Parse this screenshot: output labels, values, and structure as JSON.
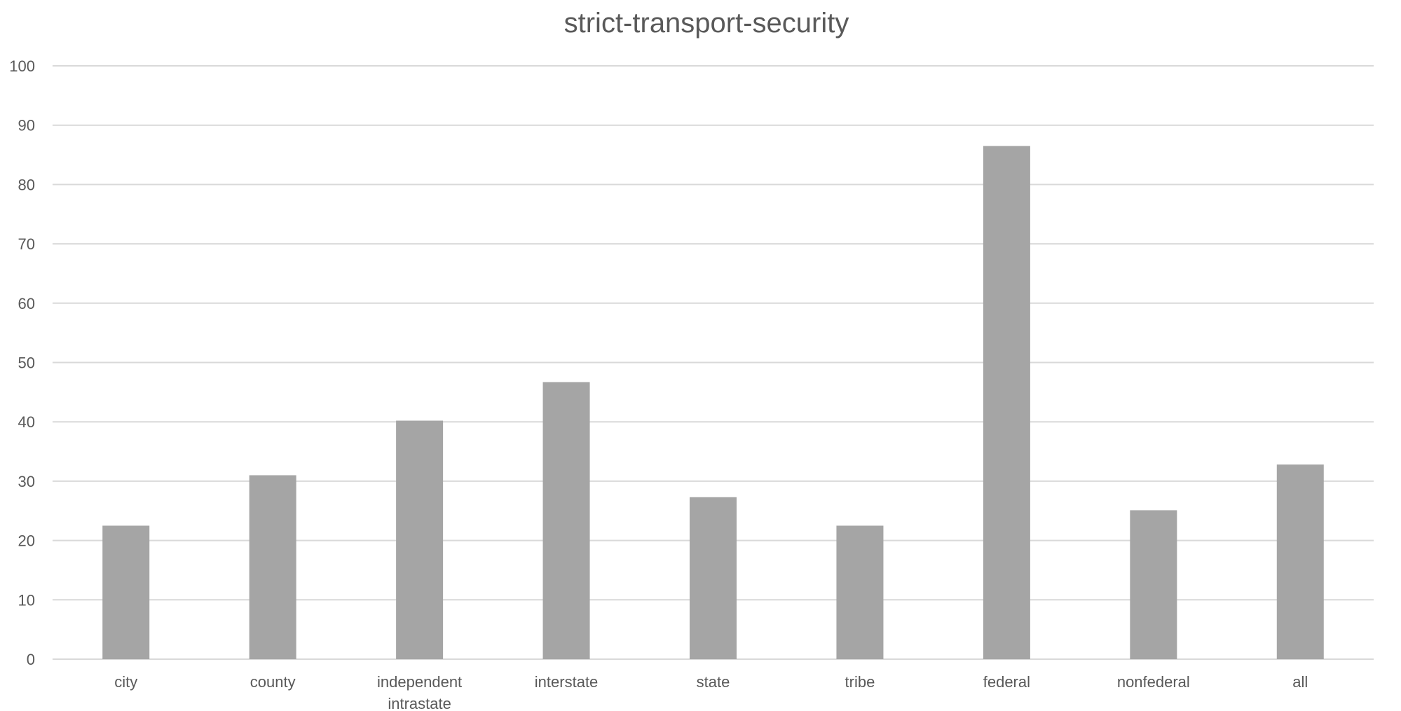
{
  "chart_data": {
    "type": "bar",
    "title": "strict-transport-security",
    "categories": [
      "city",
      "county",
      "independent intrastate",
      "interstate",
      "state",
      "tribe",
      "federal",
      "nonfederal",
      "all"
    ],
    "category_label_lines": [
      [
        "city"
      ],
      [
        "county"
      ],
      [
        "independent",
        "intrastate"
      ],
      [
        "interstate"
      ],
      [
        "state"
      ],
      [
        "tribe"
      ],
      [
        "federal"
      ],
      [
        "nonfederal"
      ],
      [
        "all"
      ]
    ],
    "values": [
      22.5,
      31,
      40.2,
      46.7,
      27.3,
      22.5,
      86.5,
      25.1,
      32.8
    ],
    "xlabel": "",
    "ylabel": "",
    "ylim": [
      0,
      100
    ],
    "yticks": [
      0,
      10,
      20,
      30,
      40,
      50,
      60,
      70,
      80,
      90,
      100
    ],
    "grid": true,
    "legend": "none",
    "bar_color": "#a5a5a5"
  }
}
